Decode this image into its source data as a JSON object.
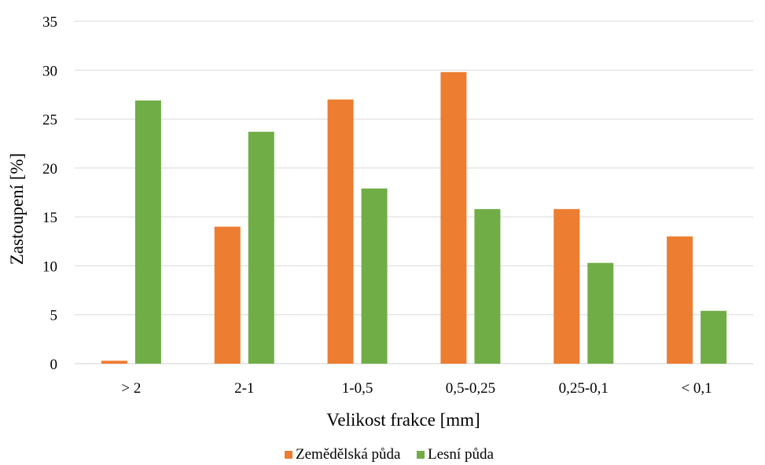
{
  "chart_data": {
    "type": "bar",
    "title": "",
    "xlabel": "Velikost frakce [mm]",
    "ylabel": "Zastoupení [%]",
    "categories": [
      "> 2",
      "2-1",
      "1-0,5",
      "0,5-0,25",
      "0,25-0,1",
      "< 0,1"
    ],
    "ylim": [
      0,
      35
    ],
    "yticks": [
      0,
      5,
      10,
      15,
      20,
      25,
      30,
      35
    ],
    "grid": true,
    "legend_position": "bottom",
    "series": [
      {
        "name": "Zemědělská půda",
        "color": "#ED7D31",
        "values": [
          0.3,
          14.0,
          27.0,
          29.8,
          15.8,
          13.0
        ]
      },
      {
        "name": "Lesní půda",
        "color": "#70AD47",
        "values": [
          26.9,
          23.7,
          17.9,
          15.8,
          10.3,
          5.4
        ]
      }
    ]
  }
}
